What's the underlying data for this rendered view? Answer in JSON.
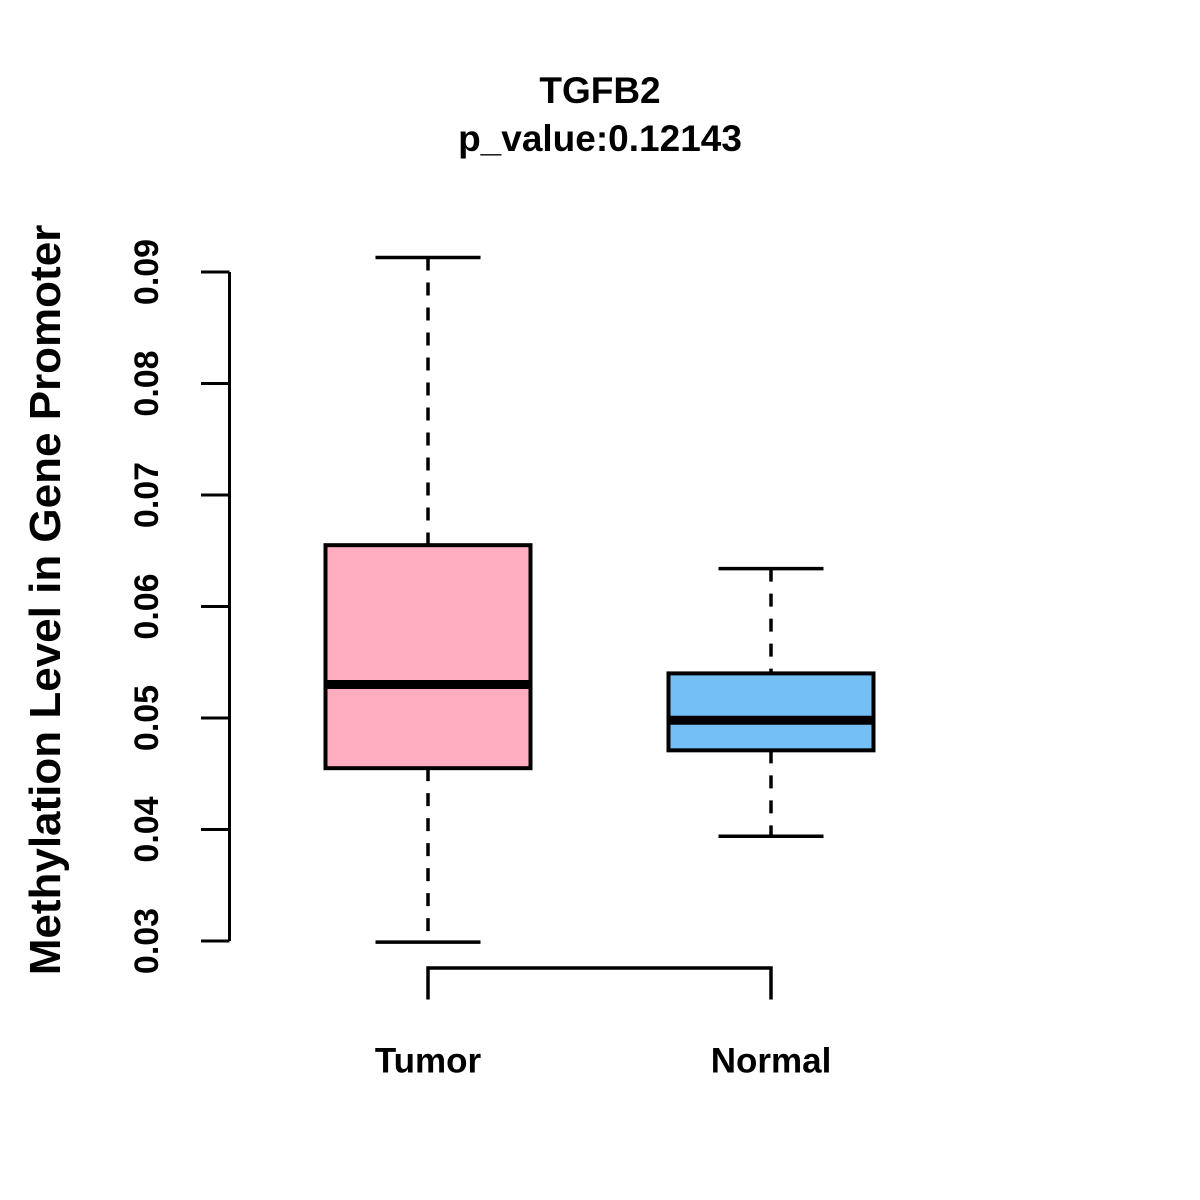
{
  "page": {
    "background_color": "#FFFFFF"
  },
  "chart_data": {
    "type": "boxplot",
    "title": "TGFB2",
    "subtitle": "p_value:0.12143",
    "p_value": 0.12143,
    "gene": "TGFB2",
    "ylabel": "Methylation Level in Gene Promoter",
    "xlabel": "",
    "categories": [
      "Tumor",
      "Normal"
    ],
    "series": [
      {
        "name": "Tumor",
        "color": "#FFAEC1",
        "whisker_low": 0.0299,
        "q1": 0.0455,
        "median": 0.053,
        "q3": 0.0655,
        "whisker_high": 0.0913,
        "outliers": []
      },
      {
        "name": "Normal",
        "color": "#74BFF5",
        "whisker_low": 0.0394,
        "q1": 0.0471,
        "median": 0.0498,
        "q3": 0.054,
        "whisker_high": 0.0634,
        "outliers": []
      }
    ],
    "ylim": [
      0.03,
      0.09
    ],
    "yticks": [
      0.03,
      0.04,
      0.05,
      0.06,
      0.07,
      0.08,
      0.09
    ],
    "ytick_labels": [
      "0.03",
      "0.04",
      "0.05",
      "0.06",
      "0.07",
      "0.08",
      "0.09"
    ],
    "grid": false,
    "legend": "none",
    "axis_color": "#000000",
    "text_color": "#000000",
    "whisker_style": "dashed",
    "median_style": "thick-solid"
  }
}
